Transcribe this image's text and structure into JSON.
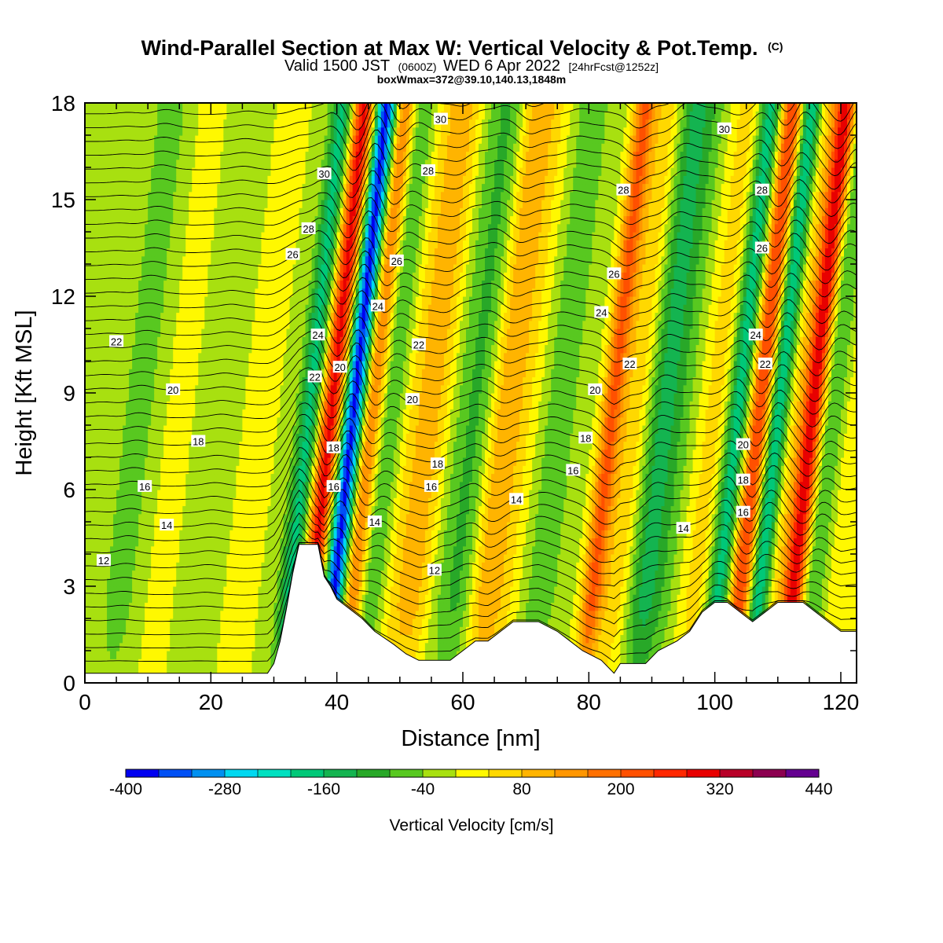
{
  "title": {
    "main": "Wind-Parallel Section at Max W: Vertical Velocity & Pot.Temp.",
    "copyright": "(C)",
    "valid_prefix": "Valid 1500 JST",
    "valid_z": "(0600Z)",
    "valid_date": "WED 6 Apr 2022",
    "forecast": "[24hrFcst@1252z]",
    "box_info": "boxWmax=372@39.10,140.13,1848m"
  },
  "chart_data": {
    "type": "heatmap",
    "xlabel": "Distance [nm]",
    "ylabel": "Height [Kft MSL]",
    "xlim": [
      0,
      122.5
    ],
    "ylim": [
      0,
      18
    ],
    "x_ticks": [
      0,
      20,
      40,
      60,
      80,
      100,
      120
    ],
    "y_ticks": [
      0,
      3,
      6,
      9,
      12,
      15,
      18
    ],
    "colorbar": {
      "title": "Vertical Velocity [cm/s]",
      "levels": [
        -400,
        -360,
        -320,
        -280,
        -240,
        -200,
        -160,
        -120,
        -80,
        -40,
        0,
        40,
        80,
        120,
        160,
        200,
        240,
        280,
        320,
        360,
        400,
        440
      ],
      "tick_labels": [
        "-400",
        "-280",
        "-160",
        "-40",
        "80",
        "200",
        "320",
        "440"
      ],
      "colors": [
        "#0000f0",
        "#0050f5",
        "#0090f0",
        "#00d8f0",
        "#00e0c0",
        "#00c878",
        "#14b450",
        "#28a828",
        "#58c820",
        "#a8e010",
        "#fff800",
        "#ffd800",
        "#ffb400",
        "#ff9600",
        "#ff7000",
        "#ff5000",
        "#ff2800",
        "#e80000",
        "#b80028",
        "#8c0050",
        "#640090"
      ]
    },
    "vertical_velocity_bands": [
      {
        "x": 3,
        "w_cm_s": -20
      },
      {
        "x": 9,
        "w_cm_s": -60
      },
      {
        "x": 15,
        "w_cm_s": 10
      },
      {
        "x": 22,
        "w_cm_s": -40
      },
      {
        "x": 28,
        "w_cm_s": 20
      },
      {
        "x": 33,
        "w_cm_s": -10
      },
      {
        "x": 36,
        "w_cm_s": -170
      },
      {
        "x": 39.5,
        "w_cm_s": 300
      },
      {
        "x": 43,
        "w_cm_s": -380
      },
      {
        "x": 46,
        "w_cm_s": 200
      },
      {
        "x": 49,
        "w_cm_s": -100
      },
      {
        "x": 52,
        "w_cm_s": 60
      },
      {
        "x": 56,
        "w_cm_s": 100
      },
      {
        "x": 59,
        "w_cm_s": -40
      },
      {
        "x": 63,
        "w_cm_s": -90
      },
      {
        "x": 67,
        "w_cm_s": 120
      },
      {
        "x": 71,
        "w_cm_s": 30
      },
      {
        "x": 75,
        "w_cm_s": -60
      },
      {
        "x": 79,
        "w_cm_s": -20
      },
      {
        "x": 84,
        "w_cm_s": 200
      },
      {
        "x": 88,
        "w_cm_s": 80
      },
      {
        "x": 92,
        "w_cm_s": -140
      },
      {
        "x": 96,
        "w_cm_s": -40
      },
      {
        "x": 100,
        "w_cm_s": 60
      },
      {
        "x": 104,
        "w_cm_s": -190
      },
      {
        "x": 107.5,
        "w_cm_s": 250
      },
      {
        "x": 110.5,
        "w_cm_s": -230
      },
      {
        "x": 113,
        "w_cm_s": 70
      },
      {
        "x": 116,
        "w_cm_s": 320
      },
      {
        "x": 119,
        "w_cm_s": -110
      },
      {
        "x": 122,
        "w_cm_s": 60
      }
    ],
    "terrain": [
      {
        "x": 0,
        "h": 0.3
      },
      {
        "x": 5,
        "h": 0.3
      },
      {
        "x": 10,
        "h": 0.3
      },
      {
        "x": 15,
        "h": 0.3
      },
      {
        "x": 20,
        "h": 0.3
      },
      {
        "x": 25,
        "h": 0.3
      },
      {
        "x": 29,
        "h": 0.3
      },
      {
        "x": 30,
        "h": 0.6
      },
      {
        "x": 31,
        "h": 1.3
      },
      {
        "x": 32,
        "h": 2.3
      },
      {
        "x": 33,
        "h": 3.4
      },
      {
        "x": 34,
        "h": 4.3
      },
      {
        "x": 37,
        "h": 4.3
      },
      {
        "x": 38,
        "h": 3.3
      },
      {
        "x": 39,
        "h": 3.0
      },
      {
        "x": 40,
        "h": 2.6
      },
      {
        "x": 42,
        "h": 2.3
      },
      {
        "x": 44,
        "h": 2.0
      },
      {
        "x": 46,
        "h": 1.6
      },
      {
        "x": 49,
        "h": 1.2
      },
      {
        "x": 51,
        "h": 0.9
      },
      {
        "x": 53,
        "h": 0.7
      },
      {
        "x": 58,
        "h": 0.7
      },
      {
        "x": 60,
        "h": 1.0
      },
      {
        "x": 62,
        "h": 1.3
      },
      {
        "x": 64,
        "h": 1.3
      },
      {
        "x": 66,
        "h": 1.6
      },
      {
        "x": 68,
        "h": 1.9
      },
      {
        "x": 72,
        "h": 1.9
      },
      {
        "x": 75,
        "h": 1.6
      },
      {
        "x": 77,
        "h": 1.3
      },
      {
        "x": 79,
        "h": 1.0
      },
      {
        "x": 82,
        "h": 0.7
      },
      {
        "x": 84,
        "h": 0.3
      },
      {
        "x": 85,
        "h": 0.6
      },
      {
        "x": 89,
        "h": 0.6
      },
      {
        "x": 91,
        "h": 1.0
      },
      {
        "x": 94,
        "h": 1.3
      },
      {
        "x": 96,
        "h": 1.6
      },
      {
        "x": 98,
        "h": 2.2
      },
      {
        "x": 100,
        "h": 2.5
      },
      {
        "x": 102,
        "h": 2.5
      },
      {
        "x": 104,
        "h": 2.2
      },
      {
        "x": 106,
        "h": 1.9
      },
      {
        "x": 108,
        "h": 2.2
      },
      {
        "x": 110,
        "h": 2.5
      },
      {
        "x": 114,
        "h": 2.5
      },
      {
        "x": 116,
        "h": 2.2
      },
      {
        "x": 118,
        "h": 1.9
      },
      {
        "x": 120,
        "h": 1.6
      },
      {
        "x": 122.5,
        "h": 1.6
      }
    ],
    "theta_contour_labels": [
      {
        "x": 5,
        "y": 10.6,
        "text": "22"
      },
      {
        "x": 14,
        "y": 9.1,
        "text": "20"
      },
      {
        "x": 18,
        "y": 7.5,
        "text": "18"
      },
      {
        "x": 9.5,
        "y": 6.1,
        "text": "16"
      },
      {
        "x": 13,
        "y": 4.9,
        "text": "14"
      },
      {
        "x": 3,
        "y": 3.8,
        "text": "12"
      },
      {
        "x": 38,
        "y": 15.8,
        "text": "30"
      },
      {
        "x": 35.5,
        "y": 14.1,
        "text": "28"
      },
      {
        "x": 33,
        "y": 13.3,
        "text": "26"
      },
      {
        "x": 37,
        "y": 10.8,
        "text": "24"
      },
      {
        "x": 36.5,
        "y": 9.5,
        "text": "22"
      },
      {
        "x": 40.5,
        "y": 9.8,
        "text": "20"
      },
      {
        "x": 39.5,
        "y": 7.3,
        "text": "18"
      },
      {
        "x": 39.5,
        "y": 6.1,
        "text": "16"
      },
      {
        "x": 46.5,
        "y": 11.7,
        "text": "24"
      },
      {
        "x": 46,
        "y": 5.0,
        "text": "14"
      },
      {
        "x": 56.5,
        "y": 17.5,
        "text": "30"
      },
      {
        "x": 54.5,
        "y": 15.9,
        "text": "28"
      },
      {
        "x": 49.5,
        "y": 13.1,
        "text": "26"
      },
      {
        "x": 53,
        "y": 10.5,
        "text": "22"
      },
      {
        "x": 52,
        "y": 8.8,
        "text": "20"
      },
      {
        "x": 56,
        "y": 6.8,
        "text": "18"
      },
      {
        "x": 55,
        "y": 6.1,
        "text": "16"
      },
      {
        "x": 55.5,
        "y": 3.5,
        "text": "12"
      },
      {
        "x": 68.5,
        "y": 5.7,
        "text": "14"
      },
      {
        "x": 85.5,
        "y": 15.3,
        "text": "28"
      },
      {
        "x": 84,
        "y": 12.7,
        "text": "26"
      },
      {
        "x": 82,
        "y": 11.5,
        "text": "24"
      },
      {
        "x": 86.5,
        "y": 9.9,
        "text": "22"
      },
      {
        "x": 81,
        "y": 9.1,
        "text": "20"
      },
      {
        "x": 79.5,
        "y": 7.6,
        "text": "18"
      },
      {
        "x": 77.5,
        "y": 6.6,
        "text": "16"
      },
      {
        "x": 101.5,
        "y": 17.2,
        "text": "30"
      },
      {
        "x": 107.5,
        "y": 15.3,
        "text": "28"
      },
      {
        "x": 107.5,
        "y": 13.5,
        "text": "26"
      },
      {
        "x": 106.5,
        "y": 10.8,
        "text": "24"
      },
      {
        "x": 108,
        "y": 9.9,
        "text": "22"
      },
      {
        "x": 104.5,
        "y": 7.4,
        "text": "20"
      },
      {
        "x": 104.5,
        "y": 6.3,
        "text": "18"
      },
      {
        "x": 104.5,
        "y": 5.3,
        "text": "16"
      },
      {
        "x": 95,
        "y": 4.8,
        "text": "14"
      }
    ]
  }
}
